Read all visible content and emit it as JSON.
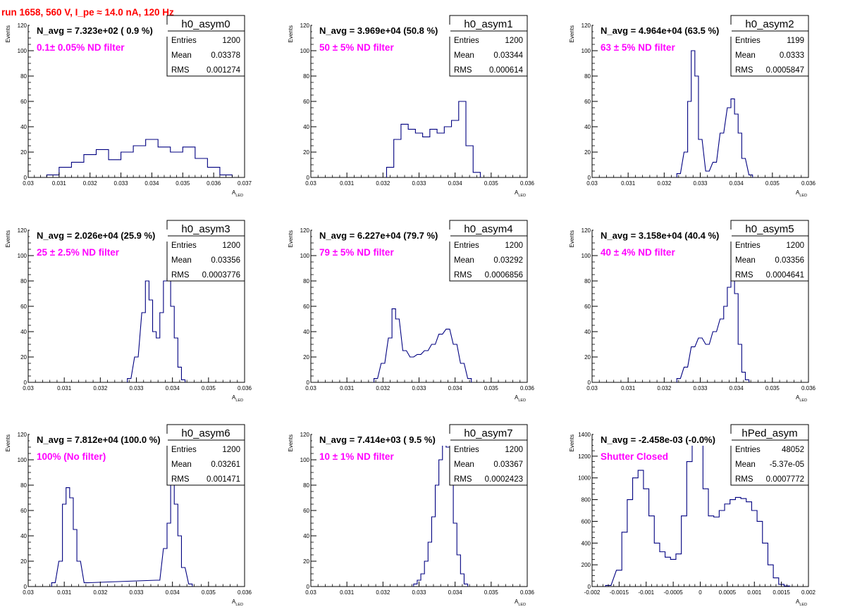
{
  "run_title": "run 1658,   560 V, I_pe ≈ 14.0 nA, 120 Hz",
  "colors": {
    "histogram": "#000080",
    "title": "#ff0000",
    "annotation": "#ff00ff",
    "frame": "#000000"
  },
  "chart_data": [
    {
      "type": "histogram",
      "name": "h0_asym0",
      "ylabel": "Events",
      "xlabel": "A",
      "xlabel_sub": "LED",
      "xlim": [
        0.03,
        0.037
      ],
      "ylim": [
        0,
        120
      ],
      "xticks": [
        0.03,
        0.031,
        0.032,
        0.033,
        0.034,
        0.035,
        0.036,
        0.037
      ],
      "xticklabels": [
        "0.03",
        "0.031",
        "0.032",
        "0.033",
        "0.034",
        "0.035",
        "0.036",
        "0.037"
      ],
      "yticks": [
        0,
        20,
        40,
        60,
        80,
        100,
        120
      ],
      "yticklabels": [
        "0",
        "20",
        "40",
        "60",
        "80",
        "100",
        "120"
      ],
      "navg": "N_avg = 7.323e+02 ( 0.9 %)",
      "filter": "0.1± 0.05% ND filter",
      "stats": {
        "Entries": "1200",
        "Mean": "0.03378",
        "RMS": "0.001274"
      },
      "x": [
        0.0308,
        0.0312,
        0.0316,
        0.032,
        0.0324,
        0.0328,
        0.0332,
        0.0336,
        0.034,
        0.0344,
        0.0348,
        0.0352,
        0.0356,
        0.036,
        0.0364
      ],
      "y": [
        2,
        8,
        12,
        18,
        22,
        14,
        20,
        25,
        30,
        24,
        20,
        24,
        15,
        8,
        2
      ]
    },
    {
      "type": "histogram",
      "name": "h0_asym1",
      "ylabel": "Events",
      "xlabel": "A",
      "xlabel_sub": "LED",
      "xlim": [
        0.03,
        0.036
      ],
      "ylim": [
        0,
        120
      ],
      "xticks": [
        0.03,
        0.031,
        0.032,
        0.033,
        0.034,
        0.035,
        0.036
      ],
      "xticklabels": [
        "0.03",
        "0.031",
        "0.032",
        "0.033",
        "0.034",
        "0.035",
        "0.036"
      ],
      "yticks": [
        0,
        20,
        40,
        60,
        80,
        100,
        120
      ],
      "yticklabels": [
        "0",
        "20",
        "40",
        "60",
        "80",
        "100",
        "120"
      ],
      "navg": "N_avg = 3.969e+04 (50.8 %)",
      "filter": "50 ± 5% ND filter",
      "stats": {
        "Entries": "1200",
        "Mean": "0.03344",
        "RMS": "0.000614"
      },
      "x": [
        0.0322,
        0.0324,
        0.0326,
        0.0328,
        0.033,
        0.0332,
        0.0334,
        0.0336,
        0.0338,
        0.034,
        0.0342,
        0.0344,
        0.0346
      ],
      "y": [
        8,
        30,
        42,
        38,
        35,
        32,
        38,
        35,
        40,
        45,
        60,
        25,
        4
      ]
    },
    {
      "type": "histogram",
      "name": "h0_asym2",
      "ylabel": "Events",
      "xlabel": "A",
      "xlabel_sub": "LED",
      "xlim": [
        0.03,
        0.036
      ],
      "ylim": [
        0,
        120
      ],
      "xticks": [
        0.03,
        0.031,
        0.032,
        0.033,
        0.034,
        0.035,
        0.036
      ],
      "xticklabels": [
        "0.03",
        "0.031",
        "0.032",
        "0.033",
        "0.034",
        "0.035",
        "0.036"
      ],
      "yticks": [
        0,
        20,
        40,
        60,
        80,
        100,
        120
      ],
      "yticklabels": [
        "0",
        "20",
        "40",
        "60",
        "80",
        "100",
        "120"
      ],
      "navg": "N_avg = 4.964e+04 (63.5 %)",
      "filter": "63 ± 5% ND filter",
      "stats": {
        "Entries": "1199",
        "Mean": "0.0333",
        "RMS": "0.0005847"
      },
      "x": [
        0.0324,
        0.0326,
        0.0327,
        0.0328,
        0.0329,
        0.033,
        0.0332,
        0.0334,
        0.0336,
        0.0338,
        0.0339,
        0.034,
        0.0341,
        0.0342,
        0.0344
      ],
      "y": [
        3,
        20,
        60,
        100,
        80,
        30,
        5,
        12,
        35,
        55,
        62,
        50,
        35,
        15,
        2
      ]
    },
    {
      "type": "histogram",
      "name": "h0_asym3",
      "ylabel": "Events",
      "xlabel": "A",
      "xlabel_sub": "LED",
      "xlim": [
        0.03,
        0.036
      ],
      "ylim": [
        0,
        120
      ],
      "xticks": [
        0.03,
        0.031,
        0.032,
        0.033,
        0.034,
        0.035,
        0.036
      ],
      "xticklabels": [
        "0.03",
        "0.031",
        "0.032",
        "0.033",
        "0.034",
        "0.035",
        "0.036"
      ],
      "yticks": [
        0,
        20,
        40,
        60,
        80,
        100,
        120
      ],
      "yticklabels": [
        "0",
        "20",
        "40",
        "60",
        "80",
        "100",
        "120"
      ],
      "navg": "N_avg = 2.026e+04 (25.9 %)",
      "filter": "25 ± 2.5% ND filter",
      "stats": {
        "Entries": "1200",
        "Mean": "0.03356",
        "RMS": "0.0003776"
      },
      "x": [
        0.0328,
        0.033,
        0.0332,
        0.0333,
        0.0334,
        0.0335,
        0.0336,
        0.0337,
        0.0338,
        0.0339,
        0.034,
        0.0341,
        0.0342,
        0.0343
      ],
      "y": [
        3,
        20,
        55,
        80,
        65,
        40,
        35,
        55,
        80,
        82,
        60,
        35,
        12,
        2
      ]
    },
    {
      "type": "histogram",
      "name": "h0_asym4",
      "ylabel": "Events",
      "xlabel": "A",
      "xlabel_sub": "LED",
      "xlim": [
        0.03,
        0.036
      ],
      "ylim": [
        0,
        120
      ],
      "xticks": [
        0.03,
        0.031,
        0.032,
        0.033,
        0.034,
        0.035,
        0.036
      ],
      "xticklabels": [
        "0.03",
        "0.031",
        "0.032",
        "0.033",
        "0.034",
        "0.035",
        "0.036"
      ],
      "yticks": [
        0,
        20,
        40,
        60,
        80,
        100,
        120
      ],
      "yticklabels": [
        "0",
        "20",
        "40",
        "60",
        "80",
        "100",
        "120"
      ],
      "navg": "N_avg = 6.227e+04 (79.7 %)",
      "filter": "79 ± 5% ND filter",
      "stats": {
        "Entries": "1200",
        "Mean": "0.03292",
        "RMS": "0.0006856"
      },
      "x": [
        0.0318,
        0.032,
        0.0322,
        0.0323,
        0.0324,
        0.0326,
        0.0328,
        0.033,
        0.0332,
        0.0334,
        0.0336,
        0.0338,
        0.034,
        0.0342,
        0.0344
      ],
      "y": [
        3,
        15,
        35,
        58,
        50,
        25,
        20,
        22,
        25,
        30,
        38,
        42,
        30,
        15,
        3
      ]
    },
    {
      "type": "histogram",
      "name": "h0_asym5",
      "ylabel": "Events",
      "xlabel": "A",
      "xlabel_sub": "LED",
      "xlim": [
        0.03,
        0.036
      ],
      "ylim": [
        0,
        120
      ],
      "xticks": [
        0.03,
        0.031,
        0.032,
        0.033,
        0.034,
        0.035,
        0.036
      ],
      "xticklabels": [
        "0.03",
        "0.031",
        "0.032",
        "0.033",
        "0.034",
        "0.035",
        "0.036"
      ],
      "yticks": [
        0,
        20,
        40,
        60,
        80,
        100,
        120
      ],
      "yticklabels": [
        "0",
        "20",
        "40",
        "60",
        "80",
        "100",
        "120"
      ],
      "navg": "N_avg = 3.158e+04 (40.4 %)",
      "filter": "40 ± 4% ND filter",
      "stats": {
        "Entries": "1200",
        "Mean": "0.03356",
        "RMS": "0.0004641"
      },
      "x": [
        0.0324,
        0.0326,
        0.0328,
        0.033,
        0.0332,
        0.0334,
        0.0336,
        0.0337,
        0.0338,
        0.0339,
        0.034,
        0.0341,
        0.0342,
        0.0343
      ],
      "y": [
        3,
        12,
        28,
        35,
        30,
        40,
        50,
        60,
        75,
        92,
        70,
        30,
        8,
        2
      ]
    },
    {
      "type": "histogram",
      "name": "h0_asym6",
      "ylabel": "Events",
      "xlabel": "A",
      "xlabel_sub": "LED",
      "xlim": [
        0.03,
        0.036
      ],
      "ylim": [
        0,
        120
      ],
      "xticks": [
        0.03,
        0.031,
        0.032,
        0.033,
        0.034,
        0.035,
        0.036
      ],
      "xticklabels": [
        "0.03",
        "0.031",
        "0.032",
        "0.033",
        "0.034",
        "0.035",
        "0.036"
      ],
      "yticks": [
        0,
        20,
        40,
        60,
        80,
        100,
        120
      ],
      "yticklabels": [
        "0",
        "20",
        "40",
        "60",
        "80",
        "100",
        "120"
      ],
      "navg": "N_avg = 7.812e+04 (100.0 %)",
      "filter": "100% (No filter)",
      "stats": {
        "Entries": "1200",
        "Mean": "0.03261",
        "RMS": "0.001471"
      },
      "x": [
        0.0307,
        0.0309,
        0.031,
        0.0311,
        0.0312,
        0.0313,
        0.0314,
        0.0316,
        0.0336,
        0.0338,
        0.0339,
        0.034,
        0.0341,
        0.0342,
        0.0343,
        0.0345
      ],
      "y": [
        3,
        20,
        65,
        78,
        70,
        45,
        20,
        3,
        5,
        30,
        50,
        88,
        65,
        40,
        15,
        2
      ]
    },
    {
      "type": "histogram",
      "name": "h0_asym7",
      "ylabel": "Events",
      "xlabel": "A",
      "xlabel_sub": "LED",
      "xlim": [
        0.03,
        0.036
      ],
      "ylim": [
        0,
        120
      ],
      "xticks": [
        0.03,
        0.031,
        0.032,
        0.033,
        0.034,
        0.035,
        0.036
      ],
      "xticklabels": [
        "0.03",
        "0.031",
        "0.032",
        "0.033",
        "0.034",
        "0.035",
        "0.036"
      ],
      "yticks": [
        0,
        20,
        40,
        60,
        80,
        100,
        120
      ],
      "yticklabels": [
        "0",
        "20",
        "40",
        "60",
        "80",
        "100",
        "120"
      ],
      "navg": "N_avg = 7.414e+03 ( 9.5 %)",
      "filter": "10 ± 1% ND filter",
      "stats": {
        "Entries": "1200",
        "Mean": "0.03367",
        "RMS": "0.0002423"
      },
      "x": [
        0.0329,
        0.033,
        0.0331,
        0.0332,
        0.0333,
        0.0334,
        0.0335,
        0.0336,
        0.0337,
        0.0338,
        0.0339,
        0.034,
        0.0341,
        0.0342,
        0.0343
      ],
      "y": [
        2,
        5,
        10,
        20,
        35,
        55,
        80,
        100,
        115,
        110,
        80,
        50,
        25,
        10,
        2
      ]
    },
    {
      "type": "histogram",
      "name": "hPed_asym",
      "ylabel": "Events",
      "xlabel": "A",
      "xlabel_sub": "LED",
      "xlim": [
        -0.002,
        0.002
      ],
      "ylim": [
        0,
        1400
      ],
      "xticks": [
        -0.002,
        -0.0015,
        -0.001,
        -0.0005,
        0,
        0.0005,
        0.001,
        0.0015,
        0.002
      ],
      "xticklabels": [
        "-0.002",
        "-0.0015",
        "-0.001",
        "-0.0005",
        "0",
        "0.0005",
        "0.001",
        "0.0015",
        "0.002"
      ],
      "yticks": [
        0,
        200,
        400,
        600,
        800,
        1000,
        1200,
        1400
      ],
      "yticklabels": [
        "0",
        "200",
        "400",
        "600",
        "800",
        "1000",
        "1200",
        "1400"
      ],
      "navg": "N_avg = -2.458e-03 (-0.0%)",
      "filter": "Shutter Closed",
      "stats": {
        "Entries": "48052",
        "Mean": "-5.37e-05",
        "RMS": "0.0007772"
      },
      "x": [
        -0.0017,
        -0.0015,
        -0.0014,
        -0.0013,
        -0.0012,
        -0.0011,
        -0.001,
        -0.0009,
        -0.0008,
        -0.0007,
        -0.0006,
        -0.0005,
        -0.0004,
        -0.0003,
        -0.0002,
        -0.0001,
        0.0,
        0.0001,
        0.0002,
        0.0003,
        0.0004,
        0.0005,
        0.0006,
        0.0007,
        0.0008,
        0.0009,
        0.001,
        0.0011,
        0.0012,
        0.0013,
        0.0014,
        0.0015,
        0.0016
      ],
      "y": [
        10,
        150,
        500,
        800,
        1000,
        1070,
        900,
        650,
        400,
        320,
        270,
        250,
        300,
        650,
        1150,
        1380,
        1300,
        900,
        650,
        640,
        700,
        760,
        800,
        820,
        810,
        780,
        700,
        600,
        400,
        200,
        80,
        20,
        5
      ]
    }
  ]
}
